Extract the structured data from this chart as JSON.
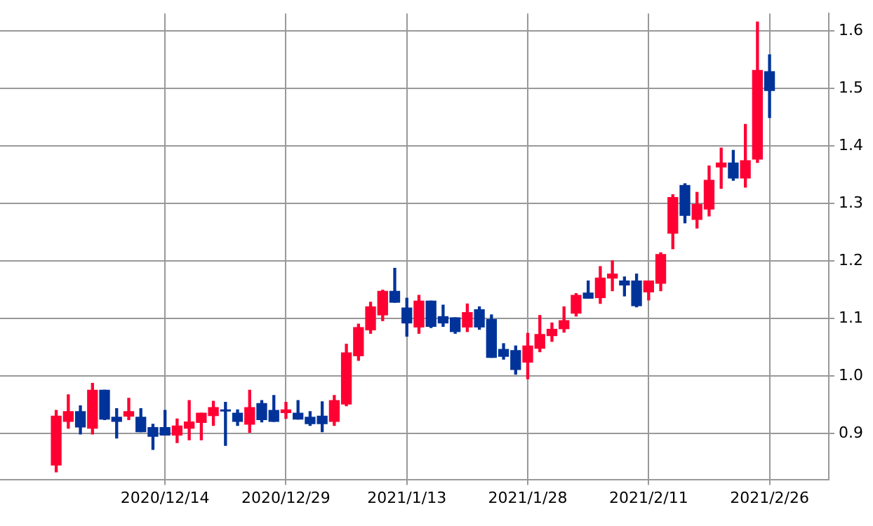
{
  "chart_data": {
    "type": "candlestick",
    "categories": [
      null,
      null,
      null,
      null,
      null,
      null,
      null,
      null,
      null,
      "2020/12/14",
      null,
      null,
      null,
      null,
      null,
      null,
      null,
      null,
      null,
      "2020/12/29",
      null,
      null,
      null,
      null,
      null,
      null,
      null,
      null,
      null,
      "2021/1/13",
      null,
      null,
      null,
      null,
      null,
      null,
      null,
      null,
      null,
      "2021/1/28",
      null,
      null,
      null,
      null,
      null,
      null,
      null,
      null,
      null,
      "2021/2/11",
      null,
      null,
      null,
      null,
      null,
      null,
      null,
      null,
      null,
      "2021/2/26"
    ],
    "ohlc": [
      [
        0.845,
        0.94,
        0.833,
        0.93
      ],
      [
        0.921,
        0.967,
        0.909,
        0.938
      ],
      [
        0.938,
        0.948,
        0.899,
        0.911
      ],
      [
        0.909,
        0.987,
        0.899,
        0.975
      ],
      [
        0.975,
        0.975,
        0.924,
        0.925
      ],
      [
        0.928,
        0.943,
        0.892,
        0.921
      ],
      [
        0.93,
        0.961,
        0.924,
        0.938
      ],
      [
        0.928,
        0.943,
        0.903,
        0.903
      ],
      [
        0.91,
        0.916,
        0.872,
        0.895
      ],
      [
        0.91,
        0.94,
        0.897,
        0.897
      ],
      [
        0.897,
        0.925,
        0.884,
        0.913
      ],
      [
        0.909,
        0.957,
        0.889,
        0.92
      ],
      [
        0.919,
        0.935,
        0.889,
        0.935
      ],
      [
        0.931,
        0.956,
        0.914,
        0.945
      ],
      [
        0.941,
        0.954,
        0.879,
        0.939
      ],
      [
        0.935,
        0.941,
        0.914,
        0.921
      ],
      [
        0.916,
        0.975,
        0.902,
        0.945
      ],
      [
        0.952,
        0.957,
        0.92,
        0.924
      ],
      [
        0.94,
        0.966,
        0.921,
        0.921
      ],
      [
        0.936,
        0.954,
        0.926,
        0.941
      ],
      [
        0.935,
        0.957,
        0.925,
        0.925
      ],
      [
        0.928,
        0.938,
        0.914,
        0.917
      ],
      [
        0.93,
        0.955,
        0.903,
        0.917
      ],
      [
        0.921,
        0.966,
        0.914,
        0.957
      ],
      [
        0.951,
        1.055,
        0.948,
        1.04
      ],
      [
        1.035,
        1.09,
        1.027,
        1.084
      ],
      [
        1.08,
        1.128,
        1.074,
        1.12
      ],
      [
        1.106,
        1.149,
        1.096,
        1.147
      ],
      [
        1.147,
        1.187,
        1.128,
        1.128
      ],
      [
        1.118,
        1.135,
        1.069,
        1.092
      ],
      [
        1.085,
        1.14,
        1.074,
        1.13
      ],
      [
        1.13,
        1.13,
        1.084,
        1.086
      ],
      [
        1.103,
        1.123,
        1.086,
        1.092
      ],
      [
        1.101,
        1.101,
        1.074,
        1.077
      ],
      [
        1.085,
        1.125,
        1.077,
        1.11
      ],
      [
        1.115,
        1.12,
        1.081,
        1.085
      ],
      [
        1.098,
        1.106,
        1.032,
        1.032
      ],
      [
        1.046,
        1.056,
        1.029,
        1.034
      ],
      [
        1.044,
        1.052,
        1.003,
        1.011
      ],
      [
        1.024,
        1.074,
        0.995,
        1.052
      ],
      [
        1.048,
        1.105,
        1.042,
        1.072
      ],
      [
        1.07,
        1.092,
        1.06,
        1.081
      ],
      [
        1.082,
        1.12,
        1.076,
        1.096
      ],
      [
        1.109,
        1.143,
        1.104,
        1.14
      ],
      [
        1.144,
        1.165,
        1.135,
        1.135
      ],
      [
        1.136,
        1.19,
        1.126,
        1.17
      ],
      [
        1.17,
        1.2,
        1.148,
        1.177
      ],
      [
        1.165,
        1.172,
        1.139,
        1.158
      ],
      [
        1.165,
        1.177,
        1.12,
        1.122
      ],
      [
        1.146,
        1.165,
        1.132,
        1.165
      ],
      [
        1.161,
        1.214,
        1.148,
        1.211
      ],
      [
        1.248,
        1.315,
        1.221,
        1.31
      ],
      [
        1.331,
        1.334,
        1.266,
        1.279
      ],
      [
        1.272,
        1.319,
        1.257,
        1.298
      ],
      [
        1.29,
        1.365,
        1.278,
        1.34
      ],
      [
        1.363,
        1.396,
        1.326,
        1.37
      ],
      [
        1.37,
        1.392,
        1.34,
        1.344
      ],
      [
        1.344,
        1.437,
        1.328,
        1.374
      ],
      [
        1.377,
        1.615,
        1.371,
        1.531
      ],
      [
        1.529,
        1.558,
        1.449,
        1.496
      ]
    ],
    "colors": [
      "#ff0033",
      "#ff0033",
      "#003399",
      "#ff0033",
      "#003399",
      "#003399",
      "#ff0033",
      "#003399",
      "#003399",
      "#003399",
      "#ff0033",
      "#ff0033",
      "#ff0033",
      "#ff0033",
      "#003399",
      "#003399",
      "#ff0033",
      "#003399",
      "#003399",
      "#ff0033",
      "#003399",
      "#003399",
      "#003399",
      "#ff0033",
      "#ff0033",
      "#ff0033",
      "#ff0033",
      "#ff0033",
      "#003399",
      "#003399",
      "#ff0033",
      "#003399",
      "#003399",
      "#003399",
      "#ff0033",
      "#003399",
      "#003399",
      "#003399",
      "#003399",
      "#ff0033",
      "#ff0033",
      "#ff0033",
      "#ff0033",
      "#ff0033",
      "#003399",
      "#ff0033",
      "#ff0033",
      "#003399",
      "#003399",
      "#ff0033",
      "#ff0033",
      "#ff0033",
      "#003399",
      "#ff0033",
      "#ff0033",
      "#ff0033",
      "#003399",
      "#ff0033",
      "#ff0033",
      "#003399"
    ],
    "ylim": [
      0.82,
      1.63
    ],
    "yticks": [
      {
        "value": 0.9,
        "label": "0.9"
      },
      {
        "value": 1,
        "label": "1.0"
      },
      {
        "value": 1.1,
        "label": "1.1"
      },
      {
        "value": 1.2,
        "label": "1.2"
      },
      {
        "value": 1.3,
        "label": "1.3"
      },
      {
        "value": 1.4,
        "label": "1.4"
      },
      {
        "value": 1.5,
        "label": "1.5"
      },
      {
        "value": 1.6,
        "label": "1.6"
      }
    ],
    "grid": true,
    "legend": false
  }
}
